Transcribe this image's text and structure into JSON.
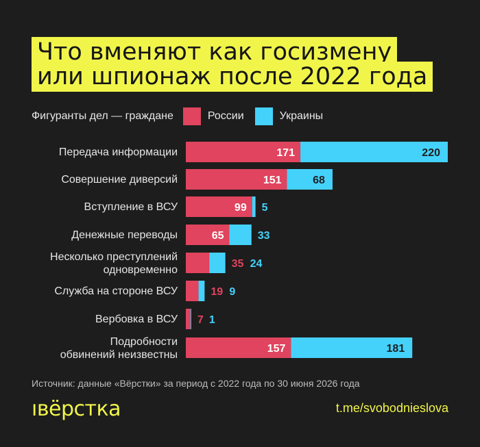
{
  "title_lines": [
    "Что вменяют как госизмену",
    "или шпионаж после 2022 года"
  ],
  "legend": {
    "prefix": "Фигуранты дел — граждане",
    "items": [
      {
        "label": "России",
        "color": "#e0445e"
      },
      {
        "label": "Украины",
        "color": "#44d2fb"
      }
    ]
  },
  "chart_data": {
    "type": "bar",
    "orientation": "horizontal",
    "stacked": true,
    "categories": [
      [
        "Передача информации"
      ],
      [
        "Совершение диверсий"
      ],
      [
        "Вступление в ВСУ"
      ],
      [
        "Денежные переводы"
      ],
      [
        "Несколько преступлений",
        "одновременно"
      ],
      [
        "Служба на стороне ВСУ"
      ],
      [
        "Вербовка в ВСУ"
      ],
      [
        "Подробности",
        "обвинений неизвестны"
      ]
    ],
    "series": [
      {
        "name": "России",
        "color": "#e0445e",
        "values": [
          171,
          151,
          99,
          65,
          35,
          19,
          7,
          157
        ]
      },
      {
        "name": "Украины",
        "color": "#44d2fb",
        "values": [
          220,
          68,
          5,
          33,
          24,
          9,
          1,
          181
        ]
      }
    ],
    "xlim": [
      0,
      391
    ]
  },
  "footer": {
    "source": "Источник: данные «Вёрстки» за период с 2022 года по 30 июня 2026 года",
    "logo": "ıвёрстка",
    "link": "t.me/svobodnieslova"
  }
}
